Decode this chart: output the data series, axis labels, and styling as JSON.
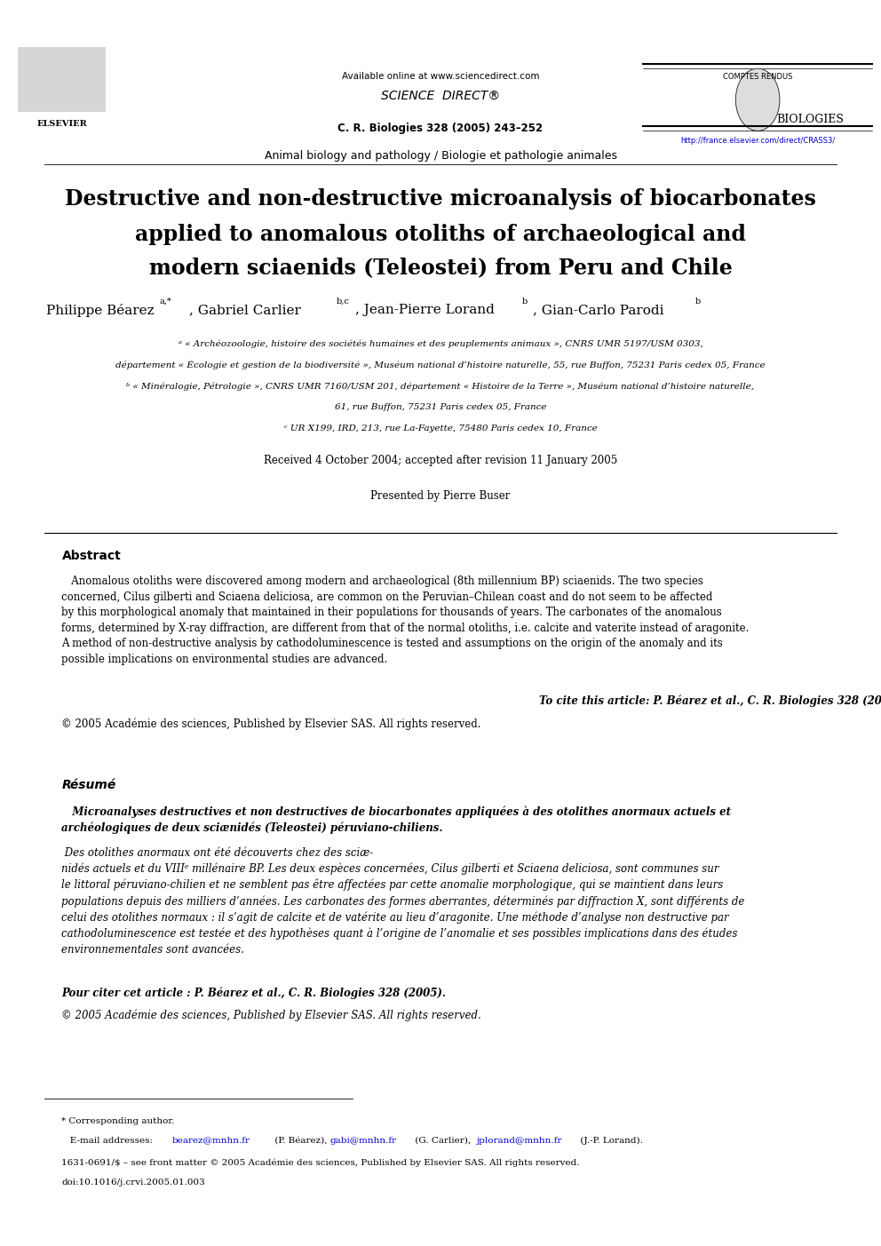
{
  "bg_color": "#ffffff",
  "page_width": 9.92,
  "page_height": 14.03,
  "header": {
    "available_online": "Available online at www.sciencedirect.com",
    "journal_ref": "C. R. Biologies 328 (2005) 243–252",
    "url": "http://france.elsevier.com/direct/CRASS3/",
    "url_color": "#0000cc",
    "comptes_rendus": "COMPTES RENDUS",
    "biologies": "BIOLOGIES"
  },
  "section_label": "Animal biology and pathology / Biologie et pathologie animales",
  "title_line1": "Destructive and non-destructive microanalysis of biocarbonates",
  "title_line2": "applied to anomalous otoliths of archaeological and",
  "title_line3": "modern sciaenids (Teleostei) from Peru and Chile",
  "affil_a": "ᵃ « Archéozoologie, histoire des sociétés humaines et des peuplements animaux », CNRS UMR 5197/USM 0303,",
  "affil_a2": "département « Écologie et gestion de la biodiversité », Muséum national d’histoire naturelle, 55, rue Buffon, 75231 Paris cedex 05, France",
  "affil_b": "ᵇ « Minéralogie, Pétrologie », CNRS UMR 7160/USM 201, département « Histoire de la Terre », Muséum national d’histoire naturelle,",
  "affil_b2": "61, rue Buffon, 75231 Paris cedex 05, France",
  "affil_c": "ᶜ UR X199, IRD, 213, rue La-Fayette, 75480 Paris cedex 10, France",
  "received": "Received 4 October 2004; accepted after revision 11 January 2005",
  "presented": "Presented by Pierre Buser",
  "abstract_title": "Abstract",
  "resume_title": "Résumé",
  "footer_note": "* Corresponding author.",
  "footer_issn": "1631-0691/$ – see front matter © 2005 Académie des sciences, Published by Elsevier SAS. All rights reserved.",
  "footer_doi": "doi:10.1016/j.crvi.2005.01.003"
}
